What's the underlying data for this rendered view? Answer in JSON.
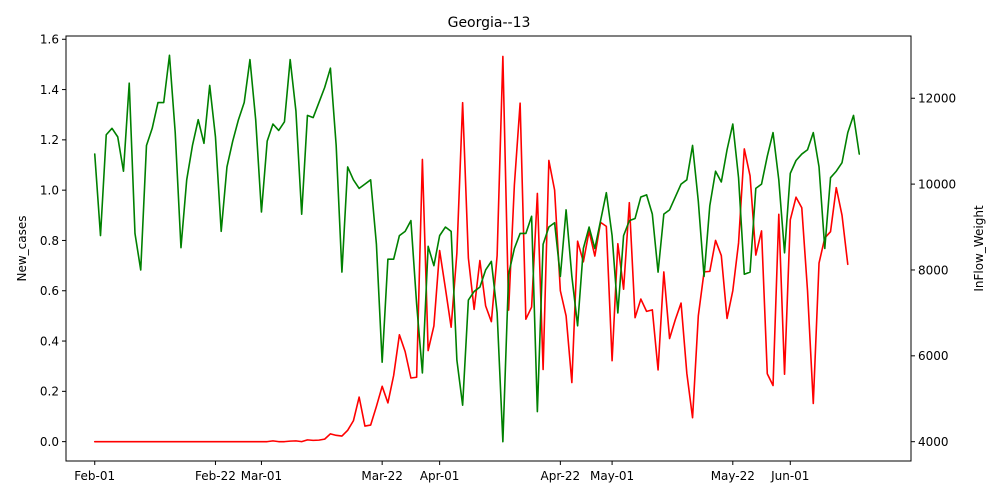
{
  "chart_data": {
    "type": "line",
    "title": "Georgia--13",
    "ylabel": "New_cases",
    "y2label": "InFlow_Weight",
    "x_start": "2020-02-01",
    "xlim": [
      "2020-01-27",
      "2020-06-22"
    ],
    "ylim": [
      -0.077,
      1.613
    ],
    "y2lim": [
      3550,
      13450
    ],
    "grid": false,
    "x_ticks": [
      {
        "date": "2020-02-01",
        "label": "Feb-01"
      },
      {
        "date": "2020-02-22",
        "label": "Feb-22"
      },
      {
        "date": "2020-03-01",
        "label": "Mar-01"
      },
      {
        "date": "2020-03-22",
        "label": "Mar-22"
      },
      {
        "date": "2020-04-01",
        "label": "Apr-01"
      },
      {
        "date": "2020-04-22",
        "label": "Apr-22"
      },
      {
        "date": "2020-05-01",
        "label": "May-01"
      },
      {
        "date": "2020-05-22",
        "label": "May-22"
      },
      {
        "date": "2020-06-01",
        "label": "Jun-01"
      }
    ],
    "y_ticks": [
      {
        "value": 0.0,
        "label": "0.0"
      },
      {
        "value": 0.2,
        "label": "0.2"
      },
      {
        "value": 0.4,
        "label": "0.4"
      },
      {
        "value": 0.6,
        "label": "0.6"
      },
      {
        "value": 0.8,
        "label": "0.8"
      },
      {
        "value": 1.0,
        "label": "1.0"
      },
      {
        "value": 1.2,
        "label": "1.2"
      },
      {
        "value": 1.4,
        "label": "1.4"
      },
      {
        "value": 1.6,
        "label": "1.6"
      }
    ],
    "y2_ticks": [
      {
        "value": 4000,
        "label": "4000"
      },
      {
        "value": 6000,
        "label": "6000"
      },
      {
        "value": 8000,
        "label": "8000"
      },
      {
        "value": 10000,
        "label": "10000"
      },
      {
        "value": 12000,
        "label": "12000"
      }
    ],
    "series": [
      {
        "axis": "left",
        "color": "#ff0000",
        "values": [
          0,
          0,
          0,
          0,
          0,
          0,
          0,
          0,
          0,
          0,
          0,
          0,
          0,
          0,
          0,
          0,
          0,
          0,
          0,
          0,
          0,
          0,
          0,
          0,
          0,
          0,
          0,
          0,
          0,
          0,
          0,
          0.003,
          0,
          0,
          0.002,
          0.003,
          0,
          0.007,
          0.005,
          0.006,
          0.01,
          0.031,
          0.025,
          0.022,
          0.045,
          0.083,
          0.177,
          0.062,
          0.066,
          0.14,
          0.22,
          0.154,
          0.263,
          0.425,
          0.358,
          0.253,
          0.256,
          1.122,
          0.362,
          0.46,
          0.76,
          0.61,
          0.455,
          0.75,
          1.348,
          0.73,
          0.526,
          0.72,
          0.54,
          0.477,
          0.74,
          1.532,
          0.523,
          1.02,
          1.346,
          0.487,
          0.535,
          0.987,
          0.287,
          1.118,
          1.0,
          0.6,
          0.5,
          0.235,
          0.797,
          0.715,
          0.837,
          0.738,
          0.872,
          0.856,
          0.322,
          0.787,
          0.606,
          0.95,
          0.493,
          0.567,
          0.518,
          0.524,
          0.285,
          0.675,
          0.41,
          0.485,
          0.551,
          0.272,
          0.095,
          0.5,
          0.675,
          0.677,
          0.8,
          0.74,
          0.49,
          0.6,
          0.79,
          1.164,
          1.057,
          0.742,
          0.838,
          0.27,
          0.223,
          0.904,
          0.268,
          0.882,
          0.972,
          0.93,
          0.6,
          0.152,
          0.71,
          0.81,
          0.835,
          1.01,
          0.9,
          0.705
        ]
      },
      {
        "axis": "right",
        "color": "#008000",
        "values": [
          10700,
          8800,
          11150,
          11300,
          11100,
          10300,
          12350,
          8850,
          8000,
          10900,
          11300,
          11900,
          11900,
          13000,
          11200,
          8520,
          10100,
          10900,
          11500,
          10950,
          12300,
          11100,
          8900,
          10400,
          11000,
          11500,
          11900,
          12900,
          11500,
          9350,
          11000,
          11400,
          11250,
          11450,
          12900,
          11700,
          9300,
          11600,
          11550,
          11900,
          12250,
          12700,
          10900,
          7950,
          10400,
          10100,
          9900,
          10000,
          10100,
          8600,
          5850,
          8250,
          8250,
          8800,
          8900,
          9150,
          7200,
          5600,
          8550,
          8100,
          8800,
          9000,
          8900,
          5900,
          4850,
          7300,
          7500,
          7600,
          8000,
          8200,
          7000,
          4000,
          7900,
          8500,
          8850,
          8850,
          9250,
          4700,
          8600,
          9000,
          9100,
          7850,
          9400,
          7850,
          6700,
          8500,
          9000,
          8500,
          9150,
          9800,
          8800,
          7000,
          8800,
          9150,
          9200,
          9700,
          9750,
          9300,
          7950,
          9300,
          9400,
          9700,
          10000,
          10100,
          10900,
          9600,
          7850,
          9500,
          10300,
          10050,
          10800,
          11400,
          10150,
          7900,
          7950,
          9900,
          10000,
          10650,
          11200,
          10100,
          8400,
          10250,
          10550,
          10700,
          10800,
          11200,
          10400,
          8500,
          10150,
          10300,
          10500,
          11200,
          11600,
          10700
        ]
      }
    ]
  }
}
